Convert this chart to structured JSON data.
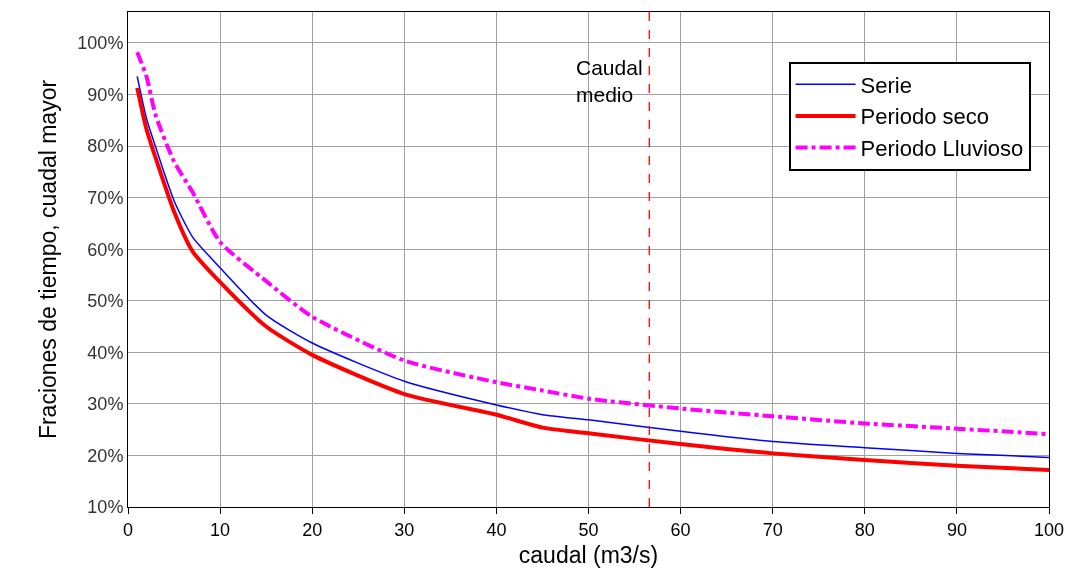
{
  "chart_data": {
    "type": "line",
    "xlabel": "caudal (m3/s)",
    "ylabel": "Fraciones de tiempo, cuadal mayor",
    "x": [
      1,
      2,
      3,
      5,
      7,
      10,
      15,
      20,
      30,
      40,
      45,
      50,
      60,
      70,
      80,
      90,
      100
    ],
    "series": [
      {
        "name": "Serie",
        "color": "#0000ff",
        "line_style": "solid",
        "values": [
          93.5,
          85.4,
          79.8,
          69.4,
          62.4,
          56.4,
          47.2,
          41.8,
          34.4,
          29.8,
          27.9,
          26.9,
          24.7,
          22.7,
          21.5,
          20.4,
          19.6
        ]
      },
      {
        "name": "Periodo seco",
        "color": "#ff0000",
        "line_style": "solid",
        "values": [
          91.3,
          83.3,
          77.7,
          67.3,
          59.6,
          53.6,
          45.0,
          39.5,
          31.9,
          27.9,
          25.4,
          24.3,
          22.2,
          20.4,
          19.1,
          18.0,
          17.2
        ]
      },
      {
        "name": "Periodo Lluvioso",
        "color": "#ff00ff",
        "line_style": "dashdot",
        "values": [
          98.2,
          93.5,
          86.0,
          77.0,
          71.1,
          61.4,
          53.8,
          46.9,
          38.4,
          34.2,
          32.6,
          31.0,
          29.1,
          27.6,
          26.2,
          25.2,
          24.1
        ]
      }
    ],
    "xlim": [
      0,
      100
    ],
    "xticks": [
      0,
      10,
      20,
      30,
      40,
      50,
      60,
      70,
      80,
      90,
      100
    ],
    "ylim": [
      10,
      106
    ],
    "yticks": [
      {
        "value": 10,
        "label": "10%"
      },
      {
        "value": 20,
        "label": "20%"
      },
      {
        "value": 30,
        "label": "30%"
      },
      {
        "value": 40,
        "label": "40%"
      },
      {
        "value": 50,
        "label": "50%"
      },
      {
        "value": 60,
        "label": "60%"
      },
      {
        "value": 70,
        "label": "70%"
      },
      {
        "value": 80,
        "label": "80%"
      },
      {
        "value": 90,
        "label": "90%"
      },
      {
        "value": 100,
        "label": "100%"
      }
    ],
    "ref_lines": [
      {
        "axis": "x",
        "value": 56.6,
        "label": "Caudal\nmedio",
        "color": "#ff0000",
        "line_style": "dashed"
      }
    ],
    "grid": true,
    "legend": "top right",
    "marker": "none"
  }
}
